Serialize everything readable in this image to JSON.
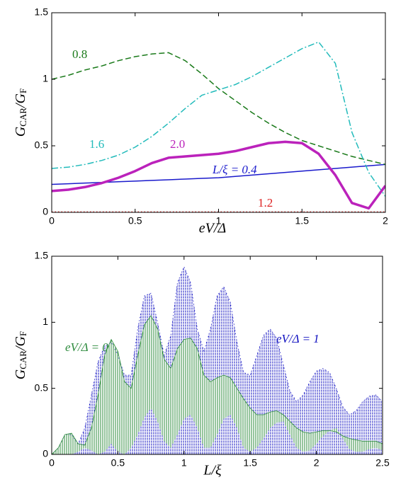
{
  "chart_data": [
    {
      "type": "line",
      "xlabel": "eV/Δ",
      "ylabel": [
        "G",
        "CAR",
        "/",
        "G",
        "F"
      ],
      "xlim": [
        0,
        2
      ],
      "ylim": [
        0,
        1.5
      ],
      "xticks": [
        0,
        0.5,
        1,
        1.5,
        2
      ],
      "yticks": [
        0,
        0.5,
        1,
        1.5
      ],
      "x": [
        0,
        0.1,
        0.2,
        0.3,
        0.4,
        0.5,
        0.6,
        0.7,
        0.8,
        0.9,
        1.0,
        1.1,
        1.2,
        1.3,
        1.4,
        1.5,
        1.6,
        1.7,
        1.8,
        1.9,
        2.0
      ],
      "series": [
        {
          "name": "L/ξ = 0.4",
          "color": "#1a1acc",
          "style": "solid",
          "width": 1.5,
          "values": [
            0.21,
            0.215,
            0.22,
            0.225,
            0.23,
            0.235,
            0.24,
            0.245,
            0.25,
            0.255,
            0.26,
            0.27,
            0.28,
            0.29,
            0.3,
            0.31,
            0.32,
            0.33,
            0.34,
            0.35,
            0.36
          ]
        },
        {
          "name": "0.8",
          "color": "#1a7a1a",
          "style": "dashed",
          "width": 1.5,
          "values": [
            1.0,
            1.03,
            1.07,
            1.1,
            1.14,
            1.17,
            1.19,
            1.2,
            1.14,
            1.04,
            0.93,
            0.84,
            0.75,
            0.67,
            0.6,
            0.54,
            0.5,
            0.46,
            0.42,
            0.39,
            0.36
          ]
        },
        {
          "name": "1.2",
          "color": "#dd2222",
          "style": "dotted",
          "width": 1.5,
          "values": [
            0.003,
            0.003,
            0.003,
            0.003,
            0.003,
            0.003,
            0.003,
            0.003,
            0.003,
            0.003,
            0.003,
            0.003,
            0.003,
            0.003,
            0.003,
            0.003,
            0.003,
            0.003,
            0.003,
            0.003,
            0.003
          ]
        },
        {
          "name": "1.6",
          "color": "#22bbbb",
          "style": "dashdot",
          "width": 1.5,
          "values": [
            0.33,
            0.34,
            0.36,
            0.39,
            0.43,
            0.49,
            0.57,
            0.67,
            0.78,
            0.88,
            0.92,
            0.96,
            1.02,
            1.09,
            1.16,
            1.23,
            1.28,
            1.12,
            0.6,
            0.3,
            0.12
          ]
        },
        {
          "name": "2.0",
          "color": "#bb22bb",
          "style": "solid",
          "width": 3.5,
          "values": [
            0.16,
            0.17,
            0.19,
            0.22,
            0.26,
            0.31,
            0.37,
            0.41,
            0.42,
            0.43,
            0.44,
            0.46,
            0.49,
            0.52,
            0.53,
            0.52,
            0.44,
            0.28,
            0.07,
            0.03,
            0.2
          ]
        }
      ]
    },
    {
      "type": "area",
      "xlabel": "L/ξ",
      "ylabel": [
        "G",
        "CAR",
        "/",
        "G",
        "F"
      ],
      "xlim": [
        0,
        2.5
      ],
      "ylim": [
        0,
        1.5
      ],
      "xticks": [
        0,
        0.5,
        1,
        1.5,
        2,
        2.5
      ],
      "yticks": [
        0,
        0.5,
        1,
        1.5
      ],
      "x": [
        0,
        0.05,
        0.1,
        0.15,
        0.2,
        0.25,
        0.3,
        0.35,
        0.4,
        0.45,
        0.5,
        0.55,
        0.6,
        0.65,
        0.7,
        0.75,
        0.8,
        0.85,
        0.9,
        0.95,
        1.0,
        1.05,
        1.1,
        1.15,
        1.2,
        1.25,
        1.3,
        1.35,
        1.4,
        1.45,
        1.5,
        1.55,
        1.6,
        1.65,
        1.7,
        1.75,
        1.8,
        1.85,
        1.9,
        1.95,
        2.0,
        2.05,
        2.1,
        2.15,
        2.2,
        2.25,
        2.3,
        2.35,
        2.4,
        2.45,
        2.5
      ],
      "series": [
        {
          "name": "eV/Δ = 1",
          "color": "#1010c0",
          "style": "dotted",
          "values": [
            0,
            0.05,
            0.15,
            0.15,
            0.08,
            0.2,
            0.45,
            0.7,
            0.82,
            0.85,
            0.75,
            0.6,
            0.6,
            0.95,
            1.2,
            1.22,
            1.0,
            0.75,
            0.9,
            1.3,
            1.42,
            1.3,
            0.95,
            0.78,
            0.95,
            1.2,
            1.27,
            1.15,
            0.85,
            0.62,
            0.6,
            0.75,
            0.9,
            0.95,
            0.88,
            0.68,
            0.48,
            0.4,
            0.45,
            0.55,
            0.63,
            0.65,
            0.62,
            0.5,
            0.36,
            0.3,
            0.33,
            0.4,
            0.44,
            0.45,
            0.4
          ]
        },
        {
          "name": "eV/Δ = 0",
          "color": "#2e8b3e",
          "style": "solid",
          "values": [
            0,
            0.05,
            0.15,
            0.16,
            0.08,
            0.07,
            0.2,
            0.45,
            0.75,
            0.87,
            0.78,
            0.55,
            0.5,
            0.75,
            0.98,
            1.05,
            0.95,
            0.72,
            0.65,
            0.8,
            0.87,
            0.88,
            0.8,
            0.6,
            0.55,
            0.58,
            0.6,
            0.58,
            0.5,
            0.42,
            0.35,
            0.3,
            0.3,
            0.32,
            0.33,
            0.3,
            0.25,
            0.2,
            0.17,
            0.16,
            0.17,
            0.18,
            0.18,
            0.17,
            0.14,
            0.12,
            0.11,
            0.1,
            0.1,
            0.1,
            0.08
          ],
          "lower": [
            0,
            0,
            0,
            0,
            0.02,
            0.05,
            0.03,
            0,
            0.02,
            0.08,
            0.02,
            0,
            0.05,
            0.15,
            0.28,
            0.35,
            0.25,
            0.1,
            0.05,
            0.15,
            0.27,
            0.3,
            0.2,
            0.05,
            0.05,
            0.15,
            0.27,
            0.3,
            0.2,
            0.05,
            0.02,
            0.05,
            0.12,
            0.2,
            0.24,
            0.25,
            0.15,
            0.05,
            0.02,
            0.03,
            0.08,
            0.14,
            0.18,
            0.2,
            0.12,
            0.04,
            0.02,
            0.02,
            0.04,
            0.05,
            0.03
          ]
        }
      ]
    }
  ]
}
